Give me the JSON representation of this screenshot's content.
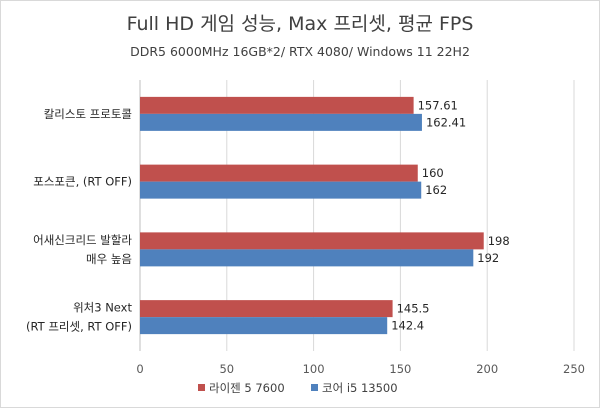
{
  "chart_data": {
    "type": "bar",
    "orientation": "horizontal",
    "title": "Full HD 게임 성능, Max 프리셋, 평균 FPS",
    "subtitle": "DDR5 6000MHz 16GB*2/ RTX 4080/ Windows 11 22H2",
    "categories": [
      [
        "칼리스토 프로토콜"
      ],
      [
        "포스포큰, (RT OFF)"
      ],
      [
        "어새신크리드 발할라",
        "매우 높음"
      ],
      [
        "위처3 Next",
        "(RT 프리셋, RT OFF)"
      ]
    ],
    "series": [
      {
        "name": "라이젠 5 7600",
        "color": "#c0504d",
        "values": [
          157.61,
          160,
          198,
          145.5
        ],
        "labels": [
          "157.61",
          "160",
          "198",
          "145.5"
        ]
      },
      {
        "name": "코어 i5 13500",
        "color": "#4f81bd",
        "values": [
          162.41,
          162,
          192,
          142.4
        ],
        "labels": [
          "162.41",
          "162",
          "192",
          "142.4"
        ]
      }
    ],
    "xlim": [
      0,
      250
    ],
    "xticks": [
      0,
      50,
      100,
      150,
      200,
      250
    ],
    "grid": true,
    "legend_position": "bottom"
  }
}
